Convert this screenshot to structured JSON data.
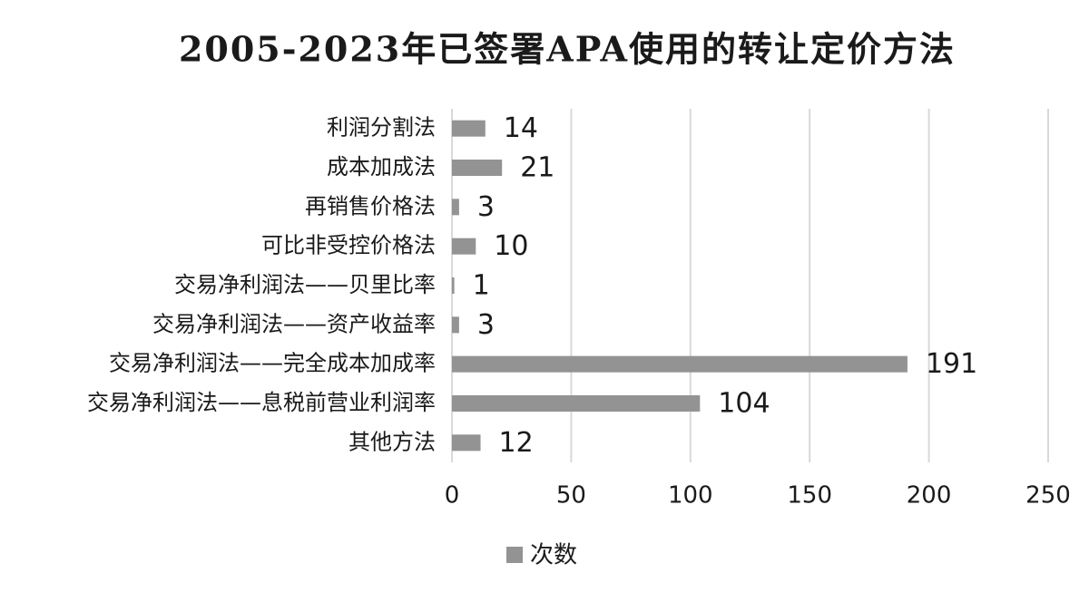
{
  "chart_data": {
    "type": "bar",
    "orientation": "horizontal",
    "title": "2005-2023年已签署APA使用的转让定价方法",
    "categories": [
      "利润分割法",
      "成本加成法",
      "再销售价格法",
      "可比非受控价格法",
      "交易净利润法——贝里比率",
      "交易净利润法——资产收益率",
      "交易净利润法——完全成本加成率",
      "交易净利润法——息税前营业利润率",
      "其他方法"
    ],
    "series": [
      {
        "name": "次数",
        "color": "#939393",
        "values": [
          14,
          21,
          3,
          10,
          1,
          3,
          191,
          104,
          12
        ]
      }
    ],
    "xlim": [
      0,
      250
    ],
    "xticks": [
      0,
      50,
      100,
      150,
      200,
      250
    ],
    "grid": true,
    "legend": "bottom"
  }
}
